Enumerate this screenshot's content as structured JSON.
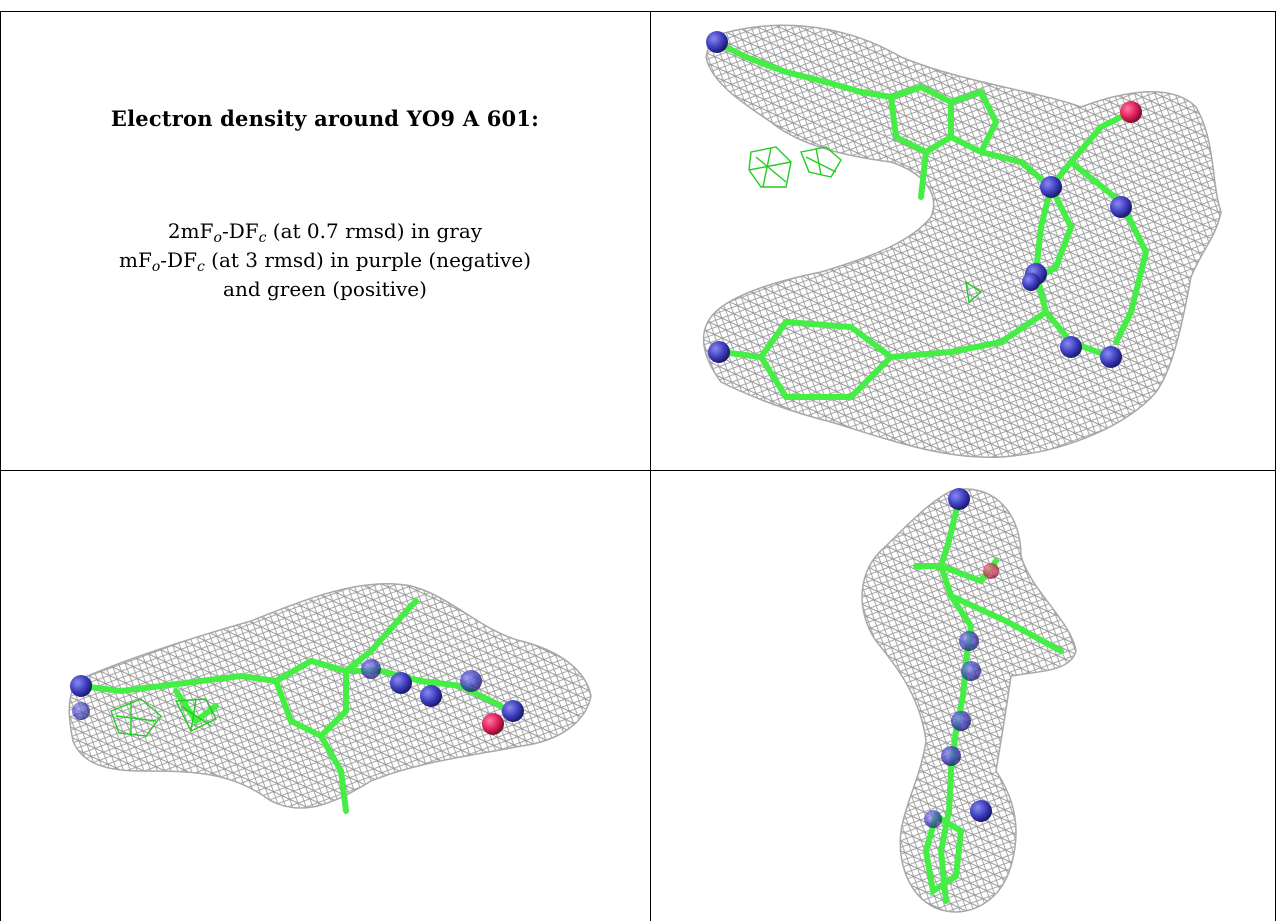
{
  "legend": {
    "title": "Electron density around YO9 A 601:",
    "line1": {
      "a": "2mF",
      "a_sub": "o",
      "b": "-DF",
      "b_sub": "c",
      "rest": " (at 0.7 rmsd) in gray"
    },
    "line2": {
      "a": "mF",
      "a_sub": "o",
      "b": "-DF",
      "b_sub": "c",
      "rest": " (at 3 rmsd) in purple (negative)"
    },
    "line3": "and green (positive)"
  },
  "colors": {
    "mesh": "#9a9a9a",
    "bond": "#44ee44",
    "nitrogen": "#3f3fc0",
    "oxygen": "#e0205a",
    "positive_density": "#22cc22"
  },
  "panels": [
    {
      "view": "top-right",
      "icon": "ligand-density-front-view"
    },
    {
      "view": "bottom-left",
      "icon": "ligand-density-side-view"
    },
    {
      "view": "bottom-right",
      "icon": "ligand-density-end-view"
    }
  ]
}
